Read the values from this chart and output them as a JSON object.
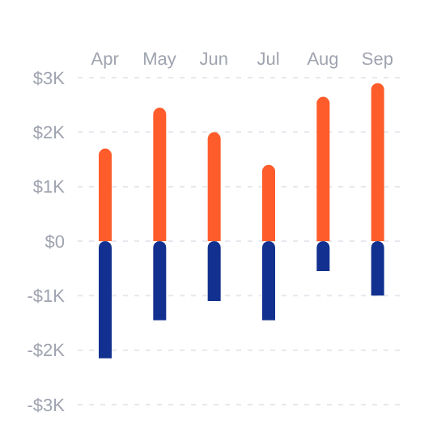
{
  "chart_data": {
    "type": "bar",
    "stacked": true,
    "categories": [
      "Apr",
      "May",
      "Jun",
      "Jul",
      "Aug",
      "Sep"
    ],
    "series": [
      {
        "color": "#ff5c2b",
        "values": [
          1.7,
          2.45,
          2.0,
          1.4,
          2.65,
          2.9
        ]
      },
      {
        "color": "#12308f",
        "values": [
          -2.15,
          -1.45,
          -1.1,
          -1.45,
          -0.55,
          -1.0
        ]
      }
    ],
    "ylim": [
      -3,
      3
    ],
    "yticks": [
      {
        "value": -3,
        "label": "-$3K"
      },
      {
        "value": -2,
        "label": "-$2K"
      },
      {
        "value": -1,
        "label": "-$1K"
      },
      {
        "value": 0,
        "label": "$0"
      },
      {
        "value": 1,
        "label": "$1K"
      },
      {
        "value": 2,
        "label": "$2K"
      },
      {
        "value": 3,
        "label": "$3K"
      }
    ],
    "grid": "y",
    "legend": false
  }
}
